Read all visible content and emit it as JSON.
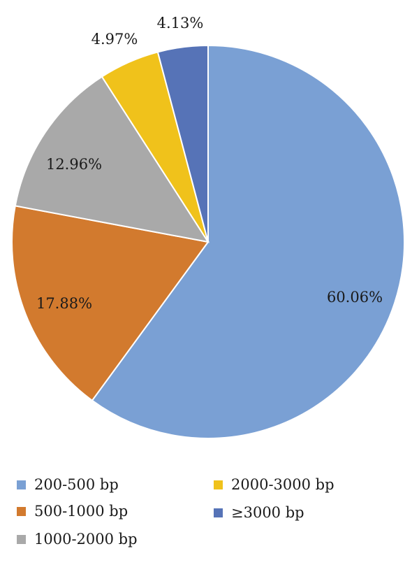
{
  "chart_data": {
    "type": "pie",
    "title": "",
    "categories": [
      "200-500 bp",
      "500-1000 bp",
      "1000-2000 bp",
      "2000-3000 bp",
      "≥3000 bp"
    ],
    "values": [
      60.06,
      17.88,
      12.96,
      4.97,
      4.13
    ],
    "labels": [
      "60.06%",
      "17.88%",
      "12.96%",
      "4.97%",
      "4.13%"
    ],
    "colors": [
      "#7aa0d4",
      "#d27a2e",
      "#a9a9a9",
      "#f0c21b",
      "#5673b7"
    ],
    "start": "12 o'clock",
    "direction": "clockwise",
    "legend_position": "bottom"
  },
  "legend": {
    "items": [
      {
        "label": "200-500 bp",
        "color": "#7aa0d4"
      },
      {
        "label": "500-1000 bp",
        "color": "#d27a2e"
      },
      {
        "label": "1000-2000 bp",
        "color": "#a9a9a9"
      },
      {
        "label": "2000-3000 bp",
        "color": "#f0c21b"
      },
      {
        "label": "≥3000 bp",
        "color": "#5673b7"
      }
    ]
  }
}
